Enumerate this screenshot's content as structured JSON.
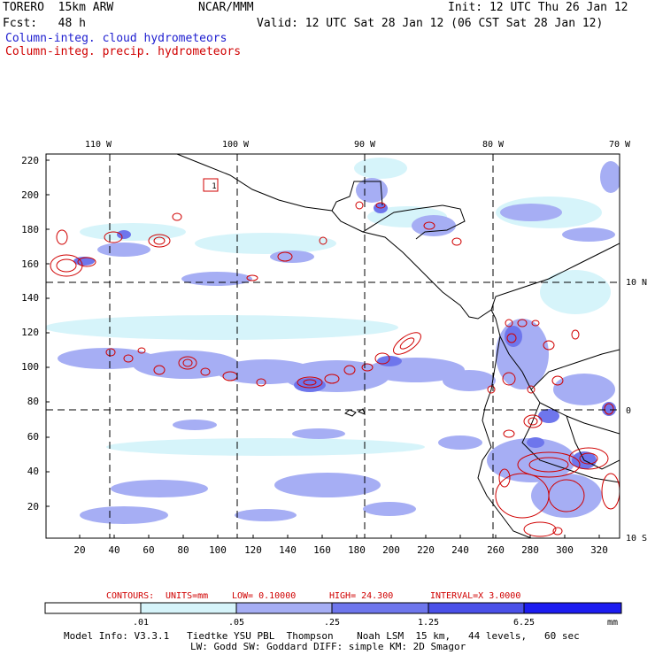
{
  "header": {
    "model": "TORERO  15km ARW",
    "org": "NCAR/MMM",
    "init": "Init: 12 UTC Thu 26 Jan 12",
    "fcst": "Fcst:   48 h",
    "valid": "Valid: 12 UTC Sat 28 Jan 12 (06 CST Sat 28 Jan 12)"
  },
  "legend": {
    "cloud": "Column-integ. cloud hydrometeors",
    "precip": "Column-integ. precip. hydrometeors",
    "cloud_color": "#2020d0",
    "precip_color": "#d00000"
  },
  "map": {
    "top_lon_labels": [
      "110 W",
      "100 W",
      "90 W",
      "80 W",
      "70 W"
    ],
    "right_lat_labels": [
      "10 N",
      "0",
      "10 S"
    ],
    "y_ticks": [
      "20",
      "40",
      "60",
      "80",
      "100",
      "120",
      "140",
      "160",
      "180",
      "200",
      "220"
    ],
    "x_ticks": [
      "20",
      "40",
      "60",
      "80",
      "100",
      "120",
      "140",
      "160",
      "180",
      "200",
      "220",
      "240",
      "260",
      "280",
      "300",
      "320"
    ],
    "box_label": "1"
  },
  "contour_info": {
    "label": "CONTOURS:",
    "units": "UNITS=mm",
    "low": "LOW= 0.10000",
    "high": "HIGH=  24.300",
    "interval": "INTERVAL=X  3.0000"
  },
  "colorbar": {
    "labels": [
      ".01",
      ".05",
      ".25",
      "1.25",
      "6.25"
    ],
    "units": "mm",
    "colors": [
      "#ffffff",
      "#d6f4fa",
      "#a6aef4",
      "#6e76ec",
      "#4a50e8",
      "#1c1cf0"
    ]
  },
  "footer": {
    "line1": "Model Info: V3.3.1   Tiedtke YSU PBL  Thompson    Noah LSM  15 km,   44 levels,   60 sec",
    "line2": "LW: Godd SW: Goddard DIFF: simple KM: 2D Smagor"
  }
}
